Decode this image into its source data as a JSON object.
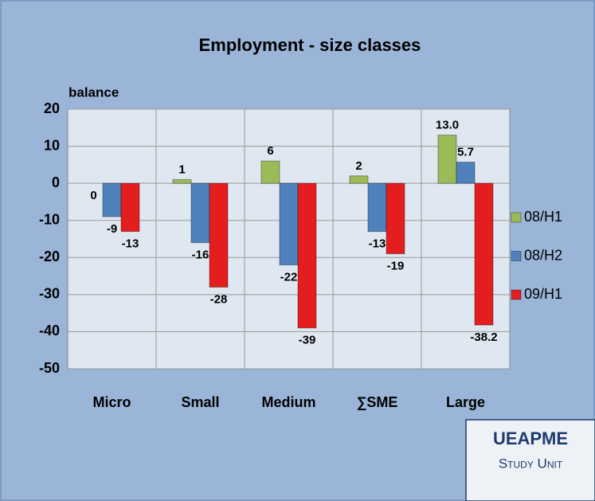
{
  "chart_data": {
    "type": "bar",
    "title": "Employment - size classes",
    "ylabel": "balance",
    "categories": [
      "Micro",
      "Small",
      "Medium",
      "∑SME",
      "Large"
    ],
    "series": [
      {
        "name": "08/H1",
        "color": "#9bbb59",
        "values": [
          0,
          1,
          6,
          2,
          13
        ],
        "value_labels": [
          "0",
          "1",
          "6",
          "2",
          "13.0"
        ]
      },
      {
        "name": "08/H2",
        "color": "#4f81bd",
        "values": [
          -9,
          -16,
          -22,
          -13,
          5.7
        ]
      },
      {
        "name": "09/H1",
        "color": "#e41e1e",
        "values": [
          -13,
          -28,
          -39,
          -19,
          -38.2
        ]
      }
    ],
    "ylim": [
      -50,
      20
    ],
    "yticks": [
      -50,
      -40,
      -30,
      -20,
      -10,
      0,
      10,
      20
    ],
    "grid": true,
    "legend": "right"
  },
  "footer": {
    "org": "UEAPME",
    "unit": "Study Unit"
  }
}
